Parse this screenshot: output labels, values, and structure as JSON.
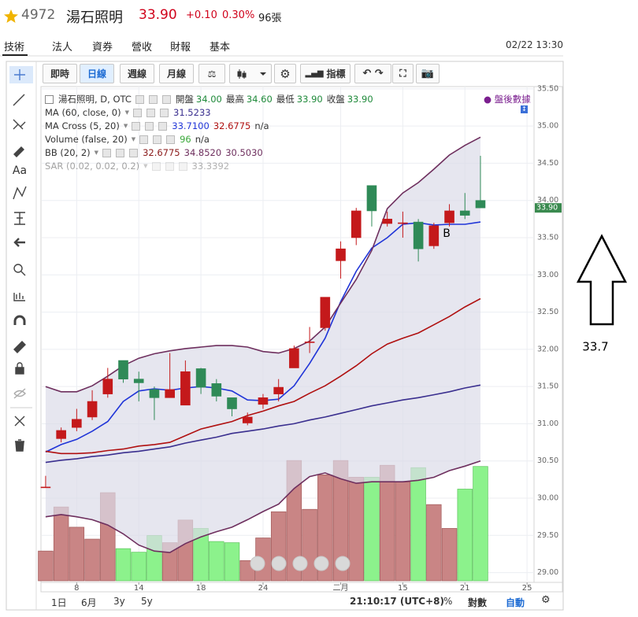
{
  "header": {
    "code": "4972",
    "name": "湯石照明",
    "price": "33.90",
    "change": "+0.10",
    "percent": "0.30%",
    "volume": "96張"
  },
  "tabs": [
    "技術",
    "法人",
    "資券",
    "營收",
    "財報",
    "基本"
  ],
  "active_tab": 0,
  "timestamp": "02/22 13:30",
  "toolbar": {
    "buttons": [
      "即時",
      "日線",
      "週線",
      "月線"
    ],
    "active": 1,
    "indicator": "指標"
  },
  "tools": {
    "text": "Aa"
  },
  "bottom": {
    "ranges": [
      "1日",
      "6月",
      "3y",
      "5y"
    ],
    "clock": "21:10:17 (UTC+8)",
    "percent": "%",
    "log": "對數",
    "auto": "自動"
  },
  "annotations": {
    "marker": "B",
    "side_note": "33.7"
  },
  "chart_data": {
    "type": "candlestick",
    "symbol": "湯石照明, D, OTC",
    "ohlc_labels": [
      "開盤",
      "最高",
      "最低",
      "收盤"
    ],
    "ohlc_values": [
      "34.00",
      "34.60",
      "33.90",
      "33.90"
    ],
    "after_hours": "盤後數據",
    "open": [
      30.15,
      30.8,
      30.95,
      31.09,
      31.4,
      31.85,
      31.6,
      31.46,
      31.35,
      31.25,
      31.74,
      31.54,
      31.35,
      31.01,
      31.26,
      31.4,
      31.75,
      32.1,
      32.29,
      33.19,
      33.5,
      34.2,
      33.69,
      33.7,
      33.71,
      33.39,
      33.7,
      33.86,
      34.0
    ],
    "high": [
      30.3,
      30.95,
      31.2,
      31.45,
      31.75,
      31.85,
      31.7,
      31.5,
      31.95,
      31.85,
      31.75,
      31.6,
      31.35,
      31.15,
      31.4,
      31.6,
      32.05,
      32.3,
      32.7,
      33.45,
      33.9,
      34.2,
      33.85,
      33.85,
      33.75,
      33.7,
      33.95,
      34.1,
      34.6
    ],
    "low": [
      30.15,
      30.75,
      30.9,
      31.05,
      31.35,
      31.55,
      31.3,
      31.05,
      31.35,
      31.25,
      31.4,
      31.3,
      31.1,
      30.98,
      31.2,
      31.3,
      31.75,
      31.95,
      32.25,
      32.95,
      33.4,
      33.65,
      33.65,
      33.5,
      33.18,
      33.35,
      33.65,
      33.75,
      33.9
    ],
    "close": [
      30.15,
      30.91,
      31.06,
      31.3,
      31.6,
      31.6,
      31.55,
      31.35,
      31.46,
      31.7,
      31.49,
      31.37,
      31.2,
      31.09,
      31.35,
      31.49,
      32.01,
      32.1,
      32.7,
      33.35,
      33.86,
      33.86,
      33.75,
      33.7,
      33.35,
      33.66,
      33.86,
      33.8,
      33.9
    ],
    "volume": [
      25,
      62,
      45,
      35,
      74,
      27,
      24,
      38,
      32,
      51,
      44,
      33,
      32,
      17,
      36,
      58,
      101,
      60,
      89,
      101,
      87,
      87,
      97,
      83,
      95,
      64,
      44,
      77,
      96
    ],
    "volume_lim": [
      0,
      415
    ],
    "up_color": "#c4191b",
    "down_color": "#2f8a57",
    "volume_up_color": "#c98585",
    "volume_down_color": "#8cf28c",
    "band_fill": "#dcdce8",
    "indicators": [
      {
        "name": "MA (60, close, 0)",
        "readouts": [
          {
            "text": "31.5233",
            "color": "#3a2f8f"
          }
        ],
        "lines": [
          {
            "color": "#3a2f8f",
            "values": [
              30.48,
              30.51,
              30.53,
              30.56,
              30.58,
              30.61,
              30.63,
              30.66,
              30.69,
              30.74,
              30.78,
              30.82,
              30.87,
              30.9,
              30.93,
              30.97,
              31.0,
              31.05,
              31.09,
              31.14,
              31.19,
              31.24,
              31.28,
              31.32,
              31.35,
              31.39,
              31.43,
              31.48,
              31.52
            ]
          }
        ]
      },
      {
        "name": "MA Cross (5, 20)",
        "readouts": [
          {
            "text": "33.7100",
            "color": "#2035d8"
          },
          {
            "text": "32.6775",
            "color": "#b01010"
          },
          {
            "text": "n/a",
            "color": "#333333"
          }
        ],
        "lines": [
          {
            "color": "#2035d8",
            "values": [
              30.62,
              30.72,
              30.79,
              30.9,
              31.03,
              31.3,
              31.44,
              31.47,
              31.45,
              31.48,
              31.5,
              31.48,
              31.44,
              31.32,
              31.31,
              31.33,
              31.51,
              31.81,
              32.15,
              32.64,
              33.05,
              33.36,
              33.5,
              33.68,
              33.7,
              33.67,
              33.68,
              33.68,
              33.71
            ]
          },
          {
            "color": "#b01010",
            "values": [
              30.63,
              30.6,
              30.6,
              30.61,
              30.64,
              30.66,
              30.7,
              30.72,
              30.75,
              30.84,
              30.93,
              30.98,
              31.03,
              31.11,
              31.17,
              31.24,
              31.3,
              31.41,
              31.51,
              31.64,
              31.78,
              31.94,
              32.07,
              32.15,
              32.22,
              32.33,
              32.44,
              32.57,
              32.68
            ]
          }
        ]
      },
      {
        "name": "Volume (false, 20)",
        "readouts": [
          {
            "text": "96",
            "color": "#3aa83a"
          },
          {
            "text": "n/a",
            "color": "#333333"
          }
        ],
        "lines": []
      },
      {
        "name": "BB (20, 2)",
        "readouts": [
          {
            "text": "32.6775",
            "color": "#8a1a1a"
          },
          {
            "text": "34.8520",
            "color": "#6e2f5e"
          },
          {
            "text": "30.5030",
            "color": "#6e2f5e"
          }
        ],
        "band": true,
        "lines": [
          {
            "color": "#6e2f5e",
            "values": [
              31.5,
              31.43,
              31.43,
              31.51,
              31.64,
              31.78,
              31.88,
              31.94,
              31.98,
              32.01,
              32.03,
              32.05,
              32.05,
              32.03,
              31.97,
              31.95,
              32.01,
              32.11,
              32.3,
              32.62,
              32.94,
              33.33,
              33.89,
              34.1,
              34.24,
              34.42,
              34.61,
              34.74,
              34.85
            ]
          },
          {
            "color": "#6e2f5e",
            "values": [
              29.75,
              29.78,
              29.75,
              29.71,
              29.64,
              29.52,
              29.37,
              29.29,
              29.27,
              29.39,
              29.48,
              29.55,
              29.61,
              29.71,
              29.82,
              29.92,
              30.13,
              30.29,
              30.34,
              30.26,
              30.2,
              30.22,
              30.22,
              30.22,
              30.24,
              30.28,
              30.37,
              30.43,
              30.5
            ]
          }
        ]
      },
      {
        "name": "SAR (0.02, 0.02, 0.2)",
        "readouts": [
          {
            "text": "33.3392",
            "color": "#555555"
          }
        ],
        "faded": true,
        "lines": []
      }
    ],
    "last_price": {
      "value": 33.9,
      "label": "33.90"
    },
    "tag_color": "#3a8a4f",
    "xlim": [
      -0.25,
      31.45
    ],
    "ylim": [
      28.89,
      35.53
    ],
    "xticks": [
      {
        "value": 2,
        "label": "8"
      },
      {
        "value": 6,
        "label": "14"
      },
      {
        "value": 10,
        "label": "18"
      },
      {
        "value": 14,
        "label": "24"
      },
      {
        "value": 19,
        "label": "二月"
      },
      {
        "value": 23,
        "label": "15"
      },
      {
        "value": 27,
        "label": "21"
      },
      {
        "value": 31,
        "label": "25"
      }
    ],
    "yticks": [
      {
        "value": 29.0,
        "label": "29.00"
      },
      {
        "value": 29.5,
        "label": "29.50"
      },
      {
        "value": 30.0,
        "label": "30.00"
      },
      {
        "value": 30.5,
        "label": "30.50"
      },
      {
        "value": 31.0,
        "label": "31.00"
      },
      {
        "value": 31.5,
        "label": "31.50"
      },
      {
        "value": 32.0,
        "label": "32.00"
      },
      {
        "value": 32.5,
        "label": "32.50"
      },
      {
        "value": 33.0,
        "label": "33.00"
      },
      {
        "value": 33.5,
        "label": "33.50"
      },
      {
        "value": 34.0,
        "label": "34.00"
      },
      {
        "value": 34.5,
        "label": "34.50"
      },
      {
        "value": 35.0,
        "label": "35.00"
      },
      {
        "value": 35.5,
        "label": "35.50"
      }
    ],
    "grid": true
  }
}
